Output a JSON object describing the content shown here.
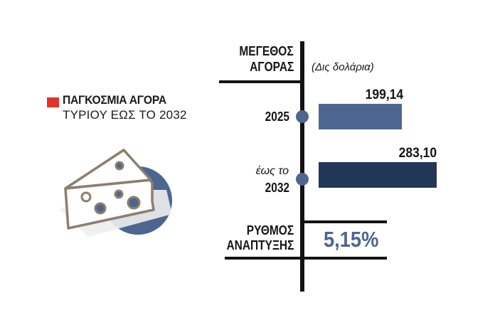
{
  "title": {
    "line1": "ΠΑΓΚΟΣΜΙΑ ΑΓΟΡΑ",
    "line2": "ΤΥΡΙΟΥ ΕΩΣ ΤΟ 2032"
  },
  "header": {
    "label_line1": "ΜΕΓΕΘΟΣ",
    "label_line2": "ΑΓΟΡΑΣ",
    "unit": "(Δις δολάρια)"
  },
  "rows": [
    {
      "label_line1": "",
      "label_line2": "2025",
      "value_label": "199,14",
      "color": "#4c6690"
    },
    {
      "label_line1": "έως το",
      "label_line2": "2032",
      "value_label": "283,10",
      "color": "#223757"
    }
  ],
  "growth": {
    "label_line1": "ΡΥΘΜΟΣ",
    "label_line2": "ΑΝΑΠΤΥΞΗΣ",
    "value": "5,15%"
  },
  "colors": {
    "accent_red": "#e4322b",
    "bar_light": "#4c6690",
    "bar_dark": "#223757",
    "axis": "#121212"
  },
  "icon": "cheese-icon",
  "chart_data": {
    "type": "bar",
    "orientation": "horizontal",
    "categories": [
      "2025",
      "έως το 2032"
    ],
    "values": [
      199.14,
      283.1
    ],
    "value_labels": [
      "199,14",
      "283,10"
    ],
    "unit": "(Δις δολάρια)",
    "growth_rate": "5,15%"
  }
}
